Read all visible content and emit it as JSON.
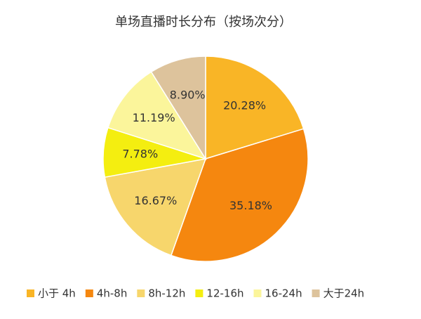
{
  "chart_data": {
    "type": "pie",
    "title": "单场直播时长分布（按场次分）",
    "categories": [
      "小于 4h",
      "4h-8h",
      "8h-12h",
      "12-16h",
      "16-24h",
      "大于24h"
    ],
    "values": [
      20.28,
      35.18,
      16.67,
      7.78,
      11.19,
      8.9
    ],
    "value_labels": [
      "20.28%",
      "35.18%",
      "16.67%",
      "7.78%",
      "11.19%",
      "8.90%"
    ],
    "colors": [
      "#f9b526",
      "#f5870f",
      "#f7d66c",
      "#f4ee10",
      "#fbf59b",
      "#ddc39c"
    ],
    "legend": "bottom"
  }
}
